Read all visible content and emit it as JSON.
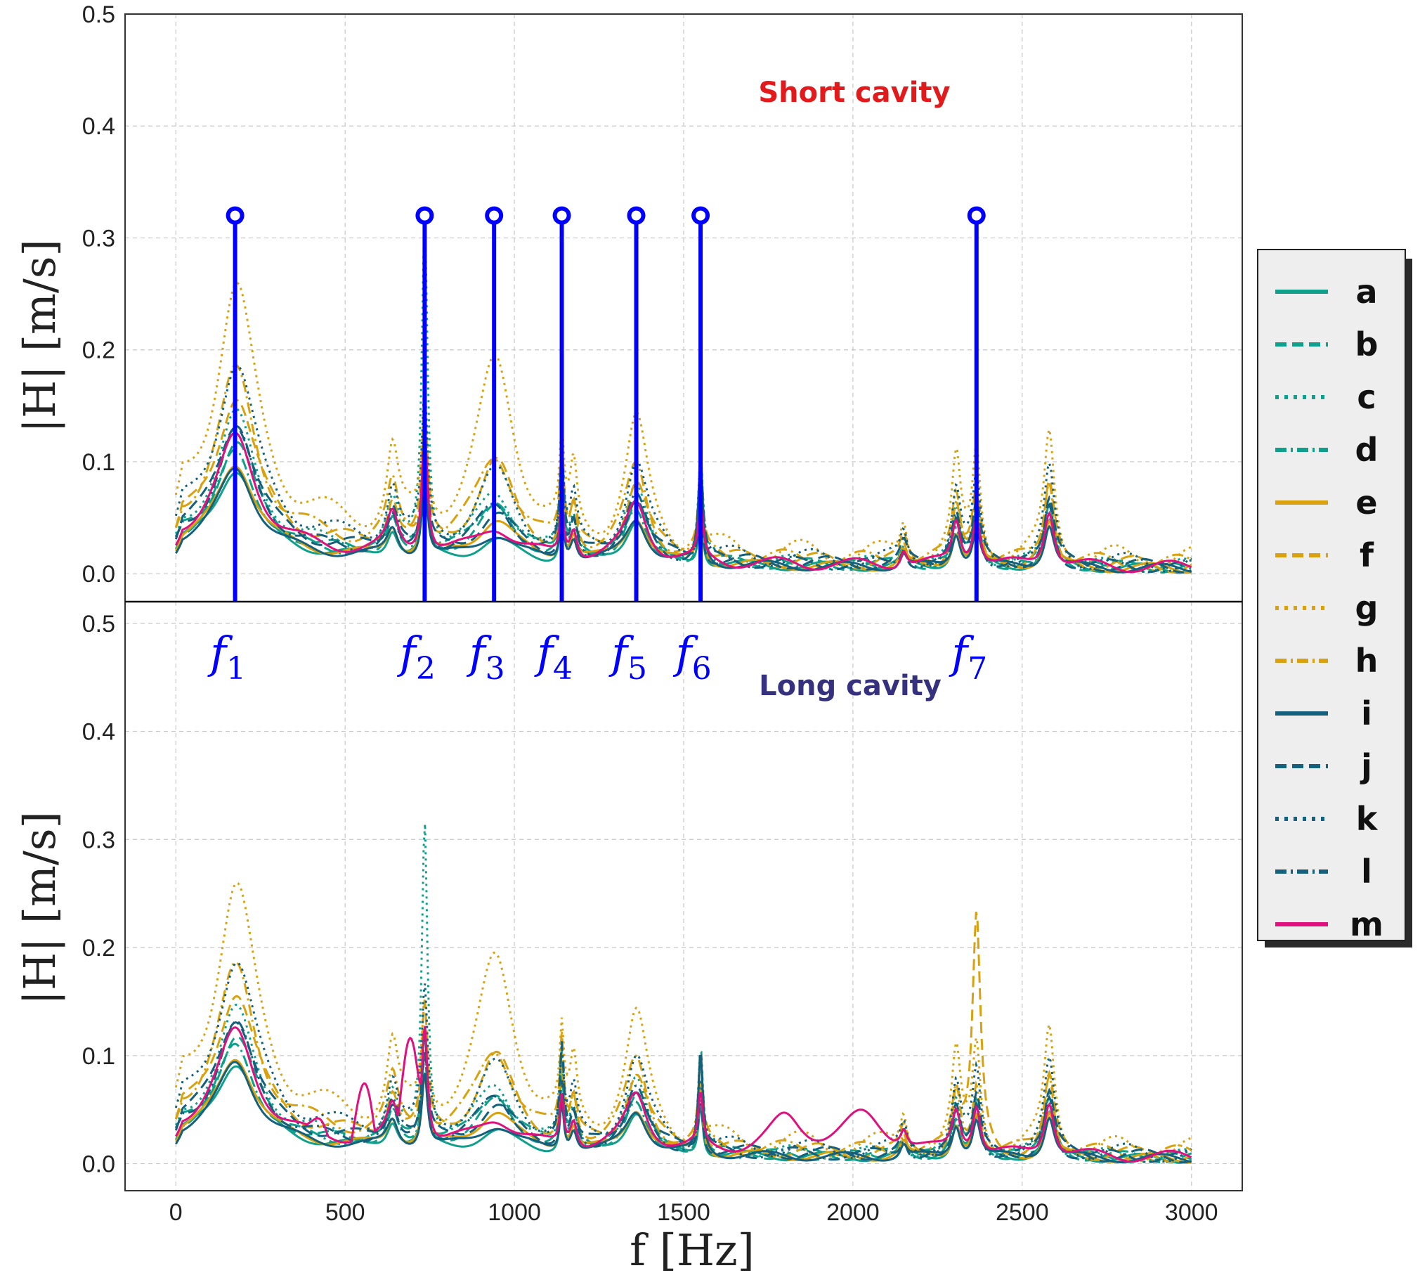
{
  "colors": {
    "teal": "#0fa08c",
    "gold": "#d9a10d",
    "navy": "#15607c",
    "magenta": "#e0107f",
    "marker": "#0000ff",
    "short_label": "#e31a1c",
    "long_label": "#35317f",
    "grid": "#c8c8c8"
  },
  "chart_data": {
    "type": "line",
    "xlabel": "f [Hz]",
    "ylabel": "|H| [m/s]",
    "xlim": [
      -150,
      3150
    ],
    "xticks": [
      "0",
      "500",
      "1000",
      "1500",
      "2000",
      "2500",
      "3000"
    ],
    "yticks": [
      "0.0",
      "0.1",
      "0.2",
      "0.3",
      "0.4",
      "0.5"
    ],
    "grid": true,
    "legend_position": "right-outside",
    "legend": [
      {
        "name": "a",
        "color": "teal",
        "style": "solid"
      },
      {
        "name": "b",
        "color": "teal",
        "style": "dashed"
      },
      {
        "name": "c",
        "color": "teal",
        "style": "dotted"
      },
      {
        "name": "d",
        "color": "teal",
        "style": "dashdot"
      },
      {
        "name": "e",
        "color": "gold",
        "style": "solid"
      },
      {
        "name": "f",
        "color": "gold",
        "style": "dashed"
      },
      {
        "name": "g",
        "color": "gold",
        "style": "dotted"
      },
      {
        "name": "h",
        "color": "gold",
        "style": "dashdot"
      },
      {
        "name": "i",
        "color": "navy",
        "style": "solid"
      },
      {
        "name": "j",
        "color": "navy",
        "style": "dashed"
      },
      {
        "name": "k",
        "color": "navy",
        "style": "dotted"
      },
      {
        "name": "l",
        "color": "navy",
        "style": "dashdot"
      },
      {
        "name": "m",
        "color": "magenta",
        "style": "solid"
      }
    ],
    "panels": [
      {
        "title": "Short cavity",
        "ylim": [
          -0.025,
          0.5
        ],
        "markers": [
          {
            "label": "f",
            "sub": "1",
            "x": 175,
            "y": 0.32
          },
          {
            "label": "f",
            "sub": "2",
            "x": 735,
            "y": 0.32
          },
          {
            "label": "f",
            "sub": "3",
            "x": 940,
            "y": 0.32
          },
          {
            "label": "f",
            "sub": "4",
            "x": 1140,
            "y": 0.32
          },
          {
            "label": "f",
            "sub": "5",
            "x": 1360,
            "y": 0.32
          },
          {
            "label": "f",
            "sub": "6",
            "x": 1550,
            "y": 0.32
          },
          {
            "label": "f",
            "sub": "7",
            "x": 2365,
            "y": 0.32
          }
        ]
      },
      {
        "title": "Long cavity",
        "ylim": [
          -0.025,
          0.52
        ]
      }
    ]
  }
}
